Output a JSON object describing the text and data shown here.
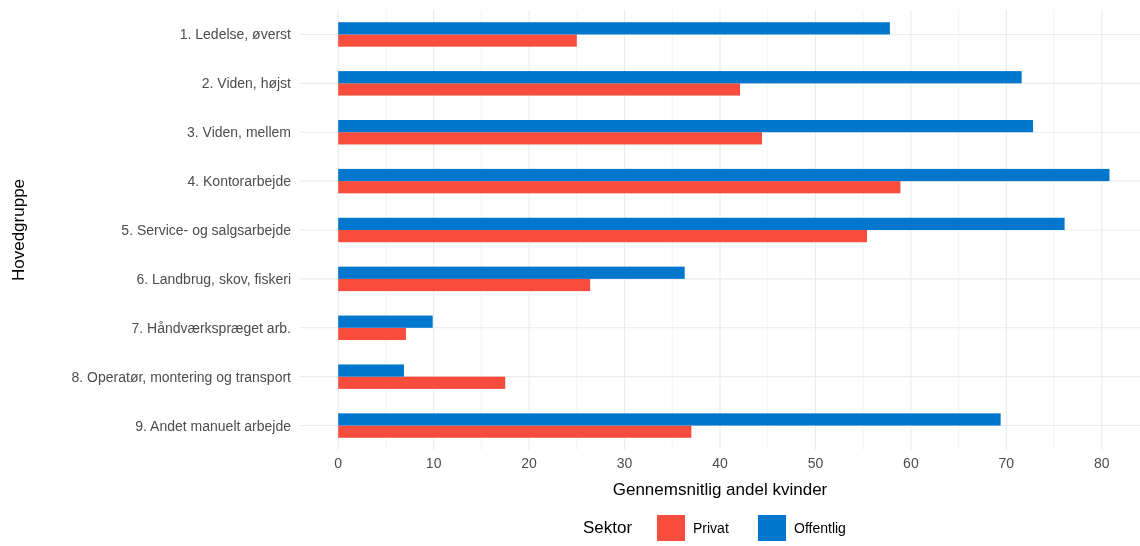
{
  "chart_data": {
    "type": "bar",
    "orientation": "horizontal",
    "xlabel": "Gennemsnitlig andel kvinder",
    "ylabel": "Hovedgruppe",
    "legend_title": "Sektor",
    "legend": "bottom",
    "grid": true,
    "categories": [
      "1. Ledelse, øverst",
      "2. Viden, højst",
      "3. Viden, mellem",
      "4. Kontorarbejde",
      "5. Service- og salgsarbejde",
      "6. Landbrug, skov, fiskeri",
      "7. Håndværkspræget arb.",
      "8. Operatør, montering og transport",
      "9. Andet manuelt arbejde"
    ],
    "series": [
      {
        "name": "Privat",
        "color": "#f84c3c",
        "values": [
          25.0,
          42.1,
          44.4,
          58.9,
          55.4,
          26.4,
          7.1,
          17.5,
          37.0
        ]
      },
      {
        "name": "Offentlig",
        "color": "#0077cc",
        "values": [
          57.8,
          71.6,
          72.8,
          80.8,
          76.1,
          36.3,
          9.9,
          6.9,
          69.4
        ]
      }
    ],
    "xlim": [
      -4,
      84
    ],
    "xticks": [
      0,
      10,
      20,
      30,
      40,
      50,
      60,
      70,
      80
    ]
  }
}
